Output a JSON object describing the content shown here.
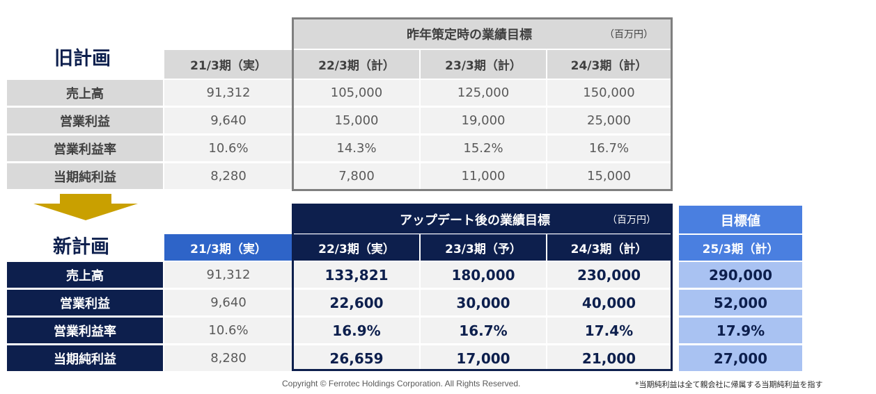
{
  "old_plan": {
    "title": "旧計画",
    "group_title": "昨年策定時の業績目標",
    "unit": "（百万円）",
    "columns": [
      "21/3期（実）",
      "22/3期（計）",
      "23/3期（計）",
      "24/3期（計）"
    ],
    "rows": [
      {
        "label": "売上高",
        "values": [
          "91,312",
          "105,000",
          "125,000",
          "150,000"
        ]
      },
      {
        "label": "営業利益",
        "values": [
          "9,640",
          "15,000",
          "19,000",
          "25,000"
        ]
      },
      {
        "label": "営業利益率",
        "values": [
          "10.6%",
          "14.3%",
          "15.2%",
          "16.7%"
        ]
      },
      {
        "label": "当期純利益",
        "values": [
          "8,280",
          "7,800",
          "11,000",
          "15,000"
        ]
      }
    ]
  },
  "new_plan": {
    "title": "新計画",
    "group_title": "アップデート後の業績目標",
    "unit": "（百万円）",
    "target_title": "目標値",
    "columns": [
      "21/3期（実）",
      "22/3期（実）",
      "23/3期（予）",
      "24/3期（計）",
      "25/3期（計）"
    ],
    "rows": [
      {
        "label": "売上高",
        "values": [
          "91,312",
          "133,821",
          "180,000",
          "230,000",
          "290,000"
        ]
      },
      {
        "label": "営業利益",
        "values": [
          "9,640",
          "22,600",
          "30,000",
          "40,000",
          "52,000"
        ]
      },
      {
        "label": "営業利益率",
        "values": [
          "10.6%",
          "16.9%",
          "16.7%",
          "17.4%",
          "17.9%"
        ]
      },
      {
        "label": "当期純利益",
        "values": [
          "8,280",
          "26,659",
          "17,000",
          "21,000",
          "27,000"
        ]
      }
    ]
  },
  "colors": {
    "navy": "#0d1f4d",
    "blue": "#2e64c8",
    "target_blue": "#4a7fe0",
    "target_light": "#a9c2f2",
    "arrow_gold": "#c9a000"
  },
  "footer": {
    "copyright": "Copyright © Ferrotec Holdings Corporation. All Rights Reserved.",
    "note": "*当期純利益は全て親会社に帰属する当期純利益を指す"
  },
  "icons": [
    "down-arrow-icon"
  ]
}
